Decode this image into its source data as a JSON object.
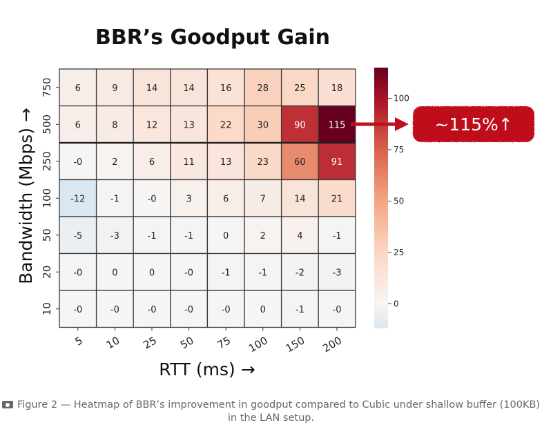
{
  "chart_data": {
    "type": "heatmap",
    "title": "BBR’s Goodput Gain",
    "xlabel": "RTT (ms) →",
    "ylabel": "Bandwidth (Mbps) →",
    "x_categories": [
      "5",
      "10",
      "25",
      "50",
      "75",
      "100",
      "150",
      "200"
    ],
    "y_categories": [
      "750",
      "500",
      "250",
      "100",
      "50",
      "20",
      "10"
    ],
    "values": [
      [
        6,
        9,
        14,
        14,
        16,
        28,
        25,
        18
      ],
      [
        6,
        8,
        12,
        13,
        22,
        30,
        90,
        115
      ],
      [
        0,
        2,
        6,
        11,
        13,
        23,
        60,
        91
      ],
      [
        -12,
        -1,
        0,
        3,
        6,
        7,
        14,
        21
      ],
      [
        -5,
        -3,
        -1,
        -1,
        0,
        2,
        4,
        -1
      ],
      [
        0,
        0,
        0,
        0,
        -1,
        -1,
        -2,
        -3
      ],
      [
        0,
        0,
        0,
        0,
        0,
        0,
        -1,
        0
      ]
    ],
    "cell_labels": [
      [
        "6",
        "9",
        "14",
        "14",
        "16",
        "28",
        "25",
        "18"
      ],
      [
        "6",
        "8",
        "12",
        "13",
        "22",
        "30",
        "90",
        "115"
      ],
      [
        "-0",
        "2",
        "6",
        "11",
        "13",
        "23",
        "60",
        "91"
      ],
      [
        "-12",
        "-1",
        "-0",
        "3",
        "6",
        "7",
        "14",
        "21"
      ],
      [
        "-5",
        "-3",
        "-1",
        "-1",
        "0",
        "2",
        "4",
        "-1"
      ],
      [
        "-0",
        "0",
        "0",
        "-0",
        "-1",
        "-1",
        "-2",
        "-3"
      ],
      [
        "-0",
        "-0",
        "-0",
        "-0",
        "-0",
        "0",
        "-1",
        "-0"
      ]
    ],
    "colorbar": {
      "ticks": [
        0,
        25,
        50,
        75,
        100
      ],
      "range": [
        -12,
        115
      ]
    },
    "annotation": "~115%↑",
    "colors": {
      "low": "#dbe7f0",
      "mid": "#f7f5f4",
      "high": "#67001f",
      "callout": "#c0111a"
    }
  },
  "caption": "Figure 2 — Heatmap of BBR’s improvement in goodput compared to Cubic under shallow buffer (100KB) in the LAN setup.",
  "caption_icon": "camera-icon"
}
